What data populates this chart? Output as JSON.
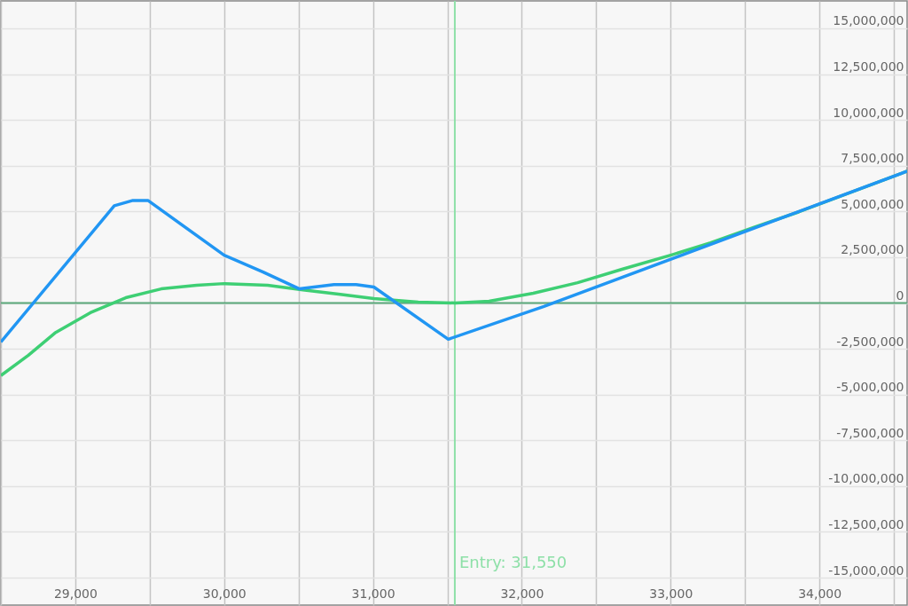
{
  "chart_data": {
    "type": "line",
    "xlim": [
      28500,
      34589
    ],
    "ylim": [
      -16500000,
      16500000
    ],
    "xticks": [
      {
        "value": 28500,
        "label": null
      },
      {
        "value": 29000,
        "label": "29,000"
      },
      {
        "value": 29500,
        "label": null
      },
      {
        "value": 30000,
        "label": "30,000"
      },
      {
        "value": 30500,
        "label": null
      },
      {
        "value": 31000,
        "label": "31,000"
      },
      {
        "value": 31500,
        "label": null
      },
      {
        "value": 32000,
        "label": "32,000"
      },
      {
        "value": 32500,
        "label": null
      },
      {
        "value": 33000,
        "label": "33,000"
      },
      {
        "value": 33500,
        "label": null
      },
      {
        "value": 34000,
        "label": "34,000"
      },
      {
        "value": 34500,
        "label": null
      }
    ],
    "yticks": [
      {
        "value": -15000000,
        "label": "-15,000,000"
      },
      {
        "value": -12500000,
        "label": "-12,500,000"
      },
      {
        "value": -10000000,
        "label": "-10,000,000"
      },
      {
        "value": -7500000,
        "label": "-7,500,000"
      },
      {
        "value": -5000000,
        "label": "-5,000,000"
      },
      {
        "value": -2500000,
        "label": "-2,500,000"
      },
      0,
      {
        "value": 2500000,
        "label": "2,500,000"
      },
      {
        "value": 5000000,
        "label": "5,000,000"
      },
      {
        "value": 7500000,
        "label": "7,500,000"
      },
      {
        "value": 10000000,
        "label": "10,000,000"
      },
      {
        "value": 12500000,
        "label": "12,500,000"
      },
      {
        "value": 15000000,
        "label": "15,000,000"
      }
    ],
    "grid": true,
    "line_style": "solid",
    "series": [
      {
        "color": "#3ecf74",
        "x": [
          28500,
          28685,
          28863,
          29101,
          29339,
          29577,
          29815,
          30000,
          30292,
          30530,
          30768,
          31006,
          31304,
          31553,
          31780,
          32077,
          32375,
          32673,
          33000,
          33268,
          33565,
          33863,
          34589
        ],
        "values": [
          -3960000,
          -2850000,
          -1640000,
          -530000,
          290000,
          770000,
          970000,
          1060000,
          970000,
          720000,
          480000,
          240000,
          50000,
          0,
          100000,
          530000,
          1110000,
          1840000,
          2610000,
          3290000,
          4150000,
          4980000,
          7200000
        ]
      },
      {
        "color": "#2196f3",
        "x": [
          28500,
          29262,
          29387,
          29488,
          30000,
          30262,
          30506,
          30738,
          30887,
          31006,
          31506,
          32149,
          34589
        ],
        "values": [
          -2130000,
          5310000,
          5600000,
          5600000,
          2610000,
          1690000,
          770000,
          1010000,
          1010000,
          870000,
          -1980000,
          -190000,
          7200000
        ]
      }
    ],
    "ref_lines": [
      {
        "axis": "y",
        "value": 0,
        "label": null,
        "color": "#5aa87a"
      },
      {
        "axis": "x",
        "value": 31550,
        "label": "Entry: 31,550",
        "color": "#8ee0a8"
      }
    ]
  }
}
